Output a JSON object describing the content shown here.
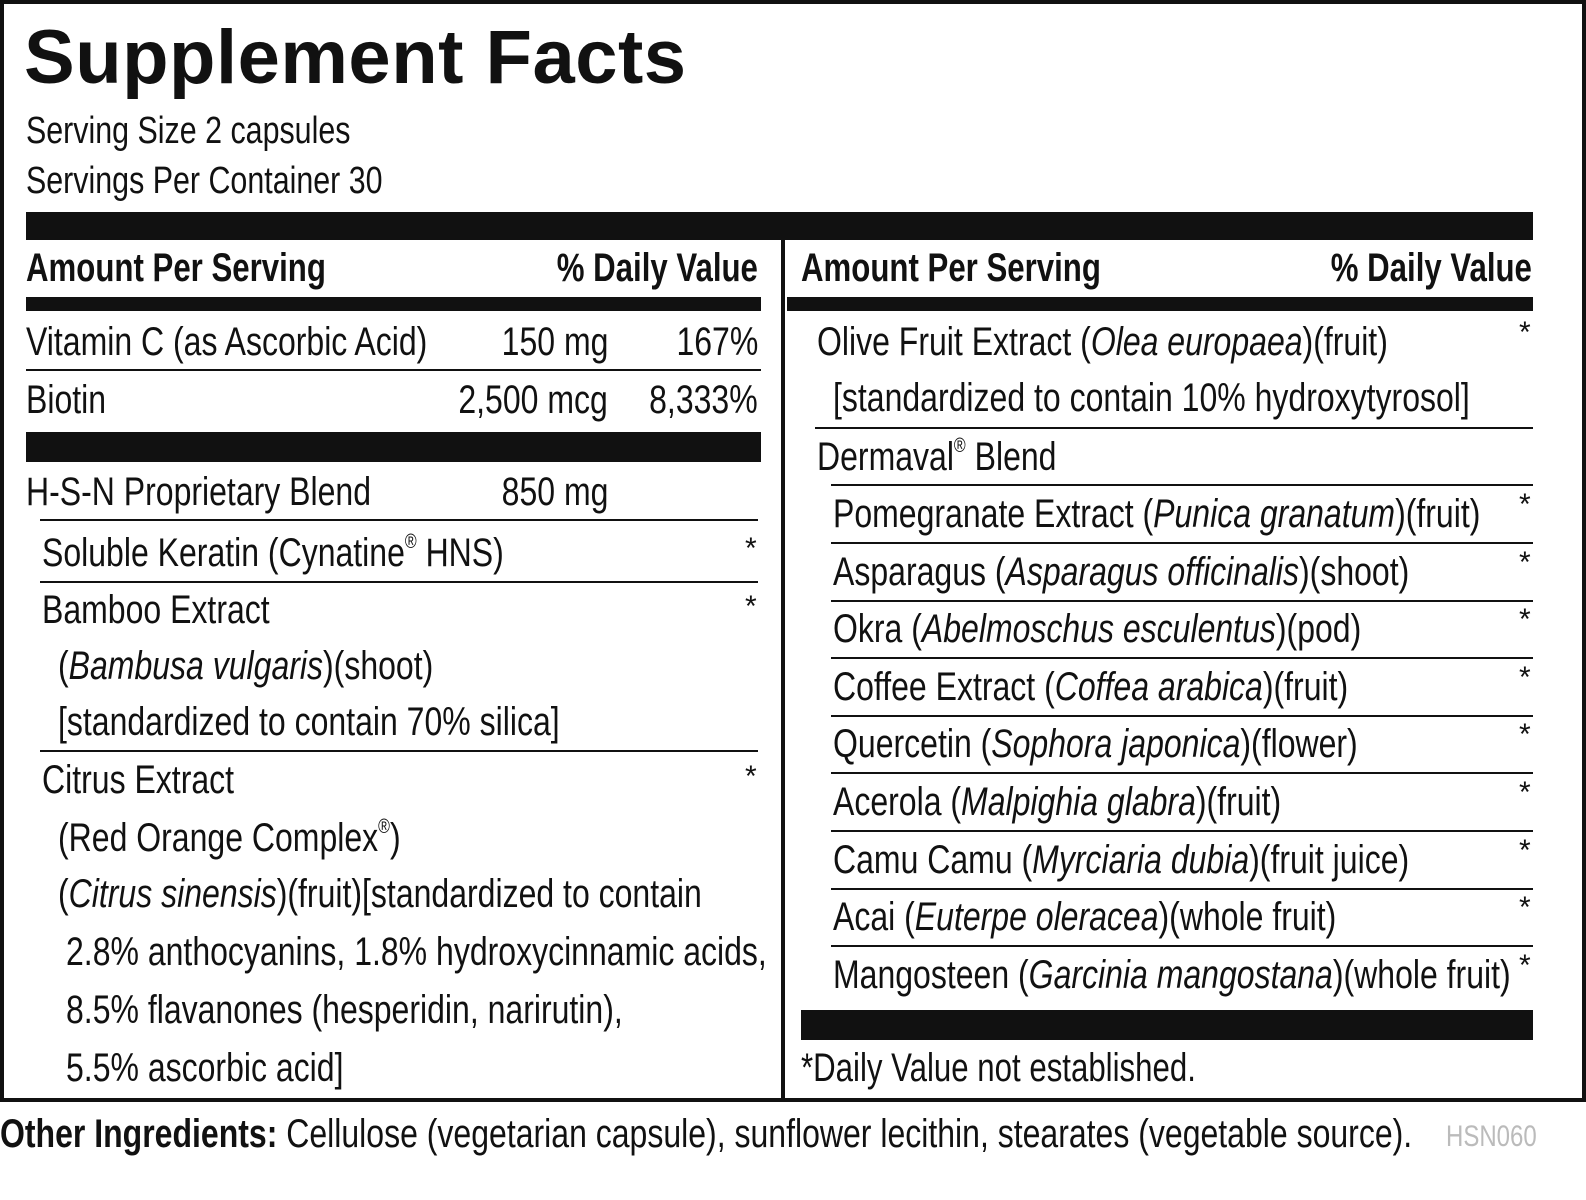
{
  "title": "Supplement Facts",
  "serving_size": "Serving Size 2 capsules",
  "servings_per_container": "Servings Per Container 30",
  "header": {
    "amount": "Amount Per Serving",
    "dv": "% Daily Value"
  },
  "left": {
    "vitamin_c": {
      "name": "Vitamin C (as Ascorbic Acid)",
      "amount": "150 mg",
      "dv": "167%"
    },
    "biotin": {
      "name": "Biotin",
      "amount": "2,500 mcg",
      "dv": "8,333%"
    },
    "blend": {
      "name": "H-S-N Proprietary Blend",
      "amount": "850 mg"
    },
    "keratin": {
      "name_a": "Soluble Keratin (Cynatine",
      "reg": "®",
      "name_b": " HNS)"
    },
    "bamboo": {
      "line1": "Bamboo Extract",
      "open": "(",
      "sci": "Bambusa vulgaris",
      "close": ")(shoot)",
      "line3": "[standardized to contain 70% silica]"
    },
    "citrus": {
      "line1": "Citrus Extract",
      "line2a": "(Red Orange Complex",
      "reg": "®",
      "line2b": ")",
      "open": "(",
      "sci": "Citrus sinensis",
      "line3b": ")(fruit)[standardized to contain",
      "line4": "2.8% anthocyanins, 1.8% hydroxycinnamic acids,",
      "line5": "8.5% flavanones (hesperidin, narirutin),",
      "line6": "5.5% ascorbic acid]"
    }
  },
  "right": {
    "olive": {
      "pre": "Olive Fruit Extract (",
      "sci": "Olea europaea",
      "post": ")(fruit)",
      "line2": "[standardized to contain 10% hydroxytyrosol]"
    },
    "dermaval": {
      "pre": "Dermaval",
      "reg": "®",
      "post": " Blend"
    },
    "items": [
      {
        "pre": "Pomegranate Extract (",
        "sci": "Punica granatum",
        "post": ")(fruit)"
      },
      {
        "pre": "Asparagus (",
        "sci": "Asparagus officinalis",
        "post": ")(shoot)"
      },
      {
        "pre": "Okra (",
        "sci": "Abelmoschus esculentus",
        "post": ")(pod)"
      },
      {
        "pre": "Coffee Extract (",
        "sci": "Coffea arabica",
        "post": ")(fruit)"
      },
      {
        "pre": "Quercetin (",
        "sci": "Sophora japonica",
        "post": ")(flower)"
      },
      {
        "pre": "Acerola (",
        "sci": "Malpighia glabra",
        "post": ")(fruit)"
      },
      {
        "pre": "Camu Camu (",
        "sci": "Myrciaria dubia",
        "post": ")(fruit juice)"
      },
      {
        "pre": "Acai (",
        "sci": "Euterpe oleracea",
        "post": ")(whole fruit)"
      },
      {
        "pre": "Mangosteen (",
        "sci": "Garcinia mangostana",
        "post": ")(whole fruit)"
      }
    ]
  },
  "star": "*",
  "footnote": "*Daily Value not established.",
  "other_label": "Other Ingredients:",
  "other_text": " Cellulose (vegetarian capsule), sunflower lecithin, stearates (vegetable source).",
  "code": "HSN060"
}
